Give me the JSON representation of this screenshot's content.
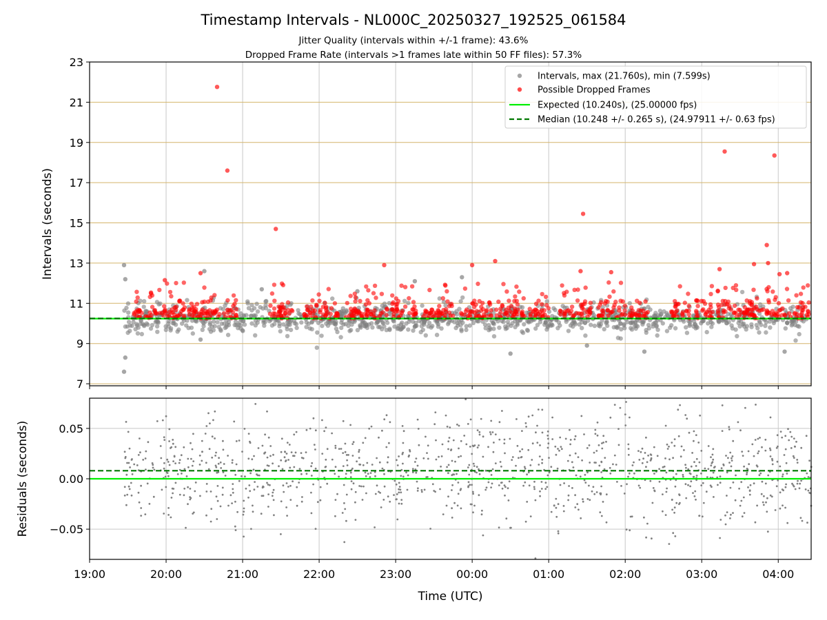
{
  "title": "Timestamp Intervals - NL000C_20250327_192525_061584",
  "subtitle_1": "Jitter Quality (intervals within +/-1 frame): 43.6%",
  "subtitle_2": "Dropped Frame Rate (intervals >1 frames late within 50 FF files): 57.3%",
  "colors": {
    "intervals": "#808080",
    "dropped": "#ff0000",
    "expected": "#00ee00",
    "median": "#007700",
    "hgrid_top": "#d4b46a",
    "grid": "#c8c8c8"
  },
  "chart_data": [
    {
      "type": "scatter",
      "ylabel": "Intervals (seconds)",
      "ylim": [
        6.9,
        23
      ],
      "yticks": [
        7,
        9,
        11,
        13,
        15,
        17,
        19,
        21,
        23
      ],
      "xlim_hours": [
        19.0,
        28.43
      ],
      "grid": "on",
      "legend_position": "top-right",
      "legend": [
        "Intervals, max (21.760s), min (7.599s)",
        "Possible Dropped Frames",
        "Expected (10.240s), (25.00000 fps)",
        "Median (10.248 +/- 0.265 s), (24.97911 +/- 0.63 fps)"
      ],
      "expected_value": 10.24,
      "median_value": 10.248,
      "series": [
        {
          "name": "Intervals, max (21.760s), min (7.599s)",
          "x_start": "19:27",
          "x_end": "04:23",
          "y_center": 10.248,
          "y_spread": 0.265,
          "max": 21.76,
          "min": 7.599,
          "notable_points": [
            {
              "x": "19:27",
              "y": 12.9
            },
            {
              "x": "19:28",
              "y": 12.2
            },
            {
              "x": "19:28",
              "y": 8.3
            },
            {
              "x": "19:27",
              "y": 7.6
            },
            {
              "x": "20:27",
              "y": 9.2
            },
            {
              "x": "20:30",
              "y": 12.6
            },
            {
              "x": "21:15",
              "y": 11.7
            },
            {
              "x": "22:30",
              "y": 11.6
            },
            {
              "x": "23:15",
              "y": 12.1
            },
            {
              "x": "23:52",
              "y": 12.3
            },
            {
              "x": "00:30",
              "y": 8.5
            },
            {
              "x": "01:30",
              "y": 8.9
            },
            {
              "x": "02:15",
              "y": 8.6
            },
            {
              "x": "04:05",
              "y": 8.6
            }
          ]
        },
        {
          "name": "Possible Dropped Frames",
          "points": [
            {
              "x": "20:40",
              "y": 21.76
            },
            {
              "x": "20:48",
              "y": 17.6
            },
            {
              "x": "21:26",
              "y": 14.7
            },
            {
              "x": "22:51",
              "y": 12.9
            },
            {
              "x": "00:18",
              "y": 13.1
            },
            {
              "x": "01:27",
              "y": 15.45
            },
            {
              "x": "03:18",
              "y": 18.55
            },
            {
              "x": "03:57",
              "y": 18.35
            },
            {
              "x": "03:51",
              "y": 13.9
            },
            {
              "x": "03:52",
              "y": 13.0
            },
            {
              "x": "03:41",
              "y": 12.95
            },
            {
              "x": "03:14",
              "y": 12.7
            },
            {
              "x": "01:49",
              "y": 12.55
            },
            {
              "x": "20:27",
              "y": 12.5
            },
            {
              "x": "00:00",
              "y": 12.9
            },
            {
              "x": "01:25",
              "y": 12.6
            },
            {
              "x": "04:07",
              "y": 12.5
            },
            {
              "x": "04:01",
              "y": 12.45
            },
            {
              "x": "19:59",
              "y": 12.15
            }
          ]
        }
      ]
    },
    {
      "type": "scatter",
      "xlabel": "Time (UTC)",
      "ylabel": "Residuals (seconds)",
      "ylim": [
        -0.08,
        0.08
      ],
      "yticks": [
        -0.05,
        0.0,
        0.05
      ],
      "ytick_labels": [
        "−0.05",
        "0.00",
        "0.05"
      ],
      "xlim_hours": [
        19.0,
        28.43
      ],
      "xticks": [
        "19:00",
        "20:00",
        "21:00",
        "22:00",
        "23:00",
        "00:00",
        "01:00",
        "02:00",
        "03:00",
        "04:00"
      ],
      "grid": "on",
      "expected_value": 0.0,
      "median_value": 0.008,
      "series": [
        {
          "name": "Residuals",
          "x_start": "19:27",
          "x_end": "04:26",
          "y_center": 0.008,
          "y_range": [
            -0.08,
            0.08
          ]
        }
      ]
    }
  ]
}
